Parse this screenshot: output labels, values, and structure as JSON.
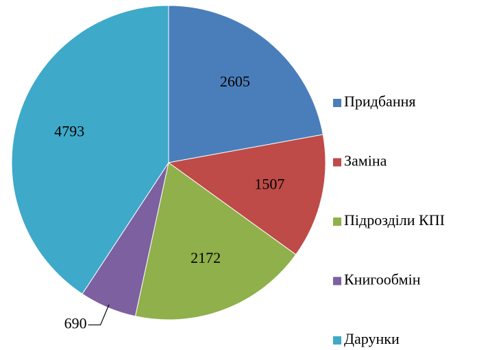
{
  "chart_data": {
    "type": "pie",
    "categories": [
      "Придбання",
      "Заміна",
      "Підрозділи КПІ",
      "Книгообмін",
      "Дарунки"
    ],
    "values": [
      2605,
      1507,
      2172,
      690,
      4793
    ],
    "colors": [
      "#4a7ebb",
      "#be4b48",
      "#8fb04a",
      "#7d60a0",
      "#3fa9c9"
    ],
    "legend": "right"
  }
}
